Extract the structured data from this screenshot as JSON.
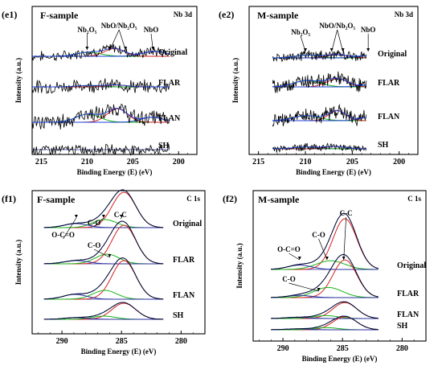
{
  "chart_data": [
    {
      "id": "e1",
      "type": "line",
      "panel_label": "(e1)",
      "title": "F-sample",
      "element_label": "Nb 3d",
      "xlabel": "Binding Energy (E) (eV)",
      "ylabel": "Intensity (a.u.)",
      "xlim": [
        216,
        198
      ],
      "x_ticks": [
        215,
        210,
        205,
        200
      ],
      "series": [
        {
          "name": "Original",
          "noise": 0.35,
          "peaks": [
            [
              209.8,
              0.45,
              1.3
            ],
            [
              207.0,
              0.85,
              1.1
            ],
            [
              202.6,
              0.55,
              1.3
            ]
          ]
        },
        {
          "name": "FLAR",
          "noise": 0.45,
          "peaks": [
            [
              209.8,
              0.15,
              1.3
            ],
            [
              206.8,
              0.2,
              1.2
            ]
          ]
        },
        {
          "name": "FLAN",
          "noise": 0.55,
          "peaks": [
            [
              209.9,
              0.9,
              1.3
            ],
            [
              206.7,
              1.5,
              1.1
            ],
            [
              202.9,
              0.55,
              1.2
            ]
          ]
        },
        {
          "name": "SH",
          "noise": 0.35,
          "peaks": []
        }
      ],
      "annotations": [
        {
          "text": "Nb₂O₅",
          "x": 210.0,
          "pos": "top",
          "targets": [
            210.0
          ]
        },
        {
          "text": "NbO/Nb₂O₅",
          "x": 206.5,
          "pos": "top",
          "targets": [
            207.5,
            205.8
          ]
        },
        {
          "text": "NbO",
          "x": 203.0,
          "pos": "top",
          "targets": [
            202.8
          ]
        }
      ]
    },
    {
      "id": "e2",
      "type": "line",
      "panel_label": "(e2)",
      "title": "M-sample",
      "element_label": "Nb 3d",
      "xlabel": "Binding Energy (E) (eV)",
      "ylabel": "Intensity (a.u.)",
      "xlim": [
        216,
        198
      ],
      "x_ticks": [
        215,
        210,
        205,
        200
      ],
      "series": [
        {
          "name": "Original",
          "noise": 0.35,
          "peaks": [
            [
              209.8,
              0.3,
              1.3
            ],
            [
              206.6,
              0.35,
              1.1
            ],
            [
              203.2,
              0.25,
              1.2
            ]
          ]
        },
        {
          "name": "FLAR",
          "noise": 0.45,
          "peaks": [
            [
              209.8,
              0.7,
              1.4
            ],
            [
              206.6,
              0.9,
              1.1
            ],
            [
              203.0,
              0.2,
              1.2
            ]
          ]
        },
        {
          "name": "FLAN",
          "noise": 0.5,
          "peaks": [
            [
              209.9,
              0.55,
              1.4
            ],
            [
              206.6,
              1.1,
              0.9
            ],
            [
              203.2,
              0.4,
              1.0
            ]
          ]
        },
        {
          "name": "SH",
          "noise": 0.25,
          "peaks": [
            [
              209.9,
              0.2,
              1.3
            ],
            [
              206.8,
              0.25,
              1.1
            ]
          ]
        }
      ],
      "annotations": [
        {
          "text": "Nb₂O₅",
          "x": 210.5,
          "pos": "top",
          "targets": [
            210.0
          ]
        },
        {
          "text": "NbO/Nb₂O₅",
          "x": 206.6,
          "pos": "top",
          "targets": [
            207.2,
            206.0
          ]
        },
        {
          "text": "NbO",
          "x": 203.3,
          "pos": "top",
          "targets": [
            203.3
          ]
        }
      ]
    },
    {
      "id": "f1",
      "type": "line",
      "panel_label": "(f1)",
      "title": "F-sample",
      "element_label": "C 1s",
      "xlabel": "Binding Energy (E) (eV)",
      "ylabel": "Intensity (a.u.)",
      "xlim": [
        292.5,
        278
      ],
      "x_ticks": [
        290,
        285,
        280
      ],
      "series": [
        {
          "name": "Original",
          "noise": 0.03,
          "peaks": [
            [
              284.8,
              2.2,
              1.0
            ],
            [
              286.4,
              0.5,
              1.0
            ],
            [
              288.8,
              0.25,
              1.0
            ]
          ]
        },
        {
          "name": "FLAR",
          "noise": 0.03,
          "peaks": [
            [
              284.8,
              2.4,
              1.0
            ],
            [
              286.2,
              0.6,
              1.0
            ],
            [
              288.8,
              0.2,
              1.0
            ]
          ]
        },
        {
          "name": "FLAN",
          "noise": 0.03,
          "peaks": [
            [
              284.8,
              2.4,
              1.0
            ],
            [
              286.4,
              0.55,
              1.0
            ],
            [
              288.9,
              0.3,
              1.0
            ]
          ]
        },
        {
          "name": "SH",
          "noise": 0.03,
          "peaks": [
            [
              284.8,
              1.0,
              1.0
            ],
            [
              286.5,
              0.2,
              1.0
            ],
            [
              288.8,
              0.1,
              1.0
            ]
          ]
        }
      ],
      "annotations": [
        {
          "text": "C-C",
          "x": 285.1,
          "pos": "top",
          "targets": [
            285.0
          ]
        },
        {
          "text": "C-O",
          "x": 287.3,
          "pos": "top",
          "targets": [
            286.5
          ]
        },
        {
          "text": "O-C=O",
          "x": 289.9,
          "pos": "top",
          "targets": [
            288.8
          ]
        },
        {
          "text": "C-O",
          "x": 287.3,
          "pos": "row1",
          "targets": [
            286.0
          ]
        }
      ]
    },
    {
      "id": "f2",
      "type": "line",
      "panel_label": "(f2)",
      "title": "M-sample",
      "element_label": "C 1s",
      "xlabel": "Binding Energy (E) (eV)",
      "ylabel": "Intensity (a.u.)",
      "xlim": [
        292.5,
        278
      ],
      "x_ticks": [
        290,
        285,
        280
      ],
      "series": [
        {
          "name": "Original",
          "noise": 0.03,
          "peaks": [
            [
              284.8,
              3.5,
              1.0
            ],
            [
              286.0,
              0.6,
              1.2
            ],
            [
              288.6,
              0.3,
              1.0
            ]
          ]
        },
        {
          "name": "FLAR",
          "noise": 0.03,
          "peaks": [
            [
              284.8,
              2.6,
              1.0
            ],
            [
              286.2,
              0.7,
              1.2
            ],
            [
              288.6,
              0.15,
              1.0
            ]
          ]
        },
        {
          "name": "FLAN",
          "noise": 0.03,
          "peaks": [
            [
              284.8,
              1.1,
              1.0
            ],
            [
              286.4,
              0.2,
              1.0
            ],
            [
              288.8,
              0.08,
              1.0
            ]
          ]
        },
        {
          "name": "SH",
          "noise": 0.03,
          "peaks": [
            [
              284.8,
              0.9,
              1.0
            ],
            [
              286.4,
              0.15,
              1.0
            ],
            [
              288.8,
              0.06,
              1.0
            ]
          ]
        }
      ],
      "annotations": [
        {
          "text": "C-C",
          "x": 284.7,
          "pos": "top",
          "targets": [
            284.9
          ]
        },
        {
          "text": "C-O",
          "x": 287.0,
          "pos": "top",
          "targets": [
            286.3
          ]
        },
        {
          "text": "O-C=O",
          "x": 289.5,
          "pos": "top",
          "targets": [
            288.6
          ]
        },
        {
          "text": "C-O",
          "x": 289.5,
          "pos": "row1",
          "targets": [
            287.0
          ]
        }
      ]
    }
  ],
  "colors": {
    "raw": "#000000",
    "fit_a": "#1b3fd6",
    "fit_b": "#d62020",
    "fit_c": "#18b318",
    "fit_d": "#2a2f9e",
    "background": "#ffffff"
  }
}
